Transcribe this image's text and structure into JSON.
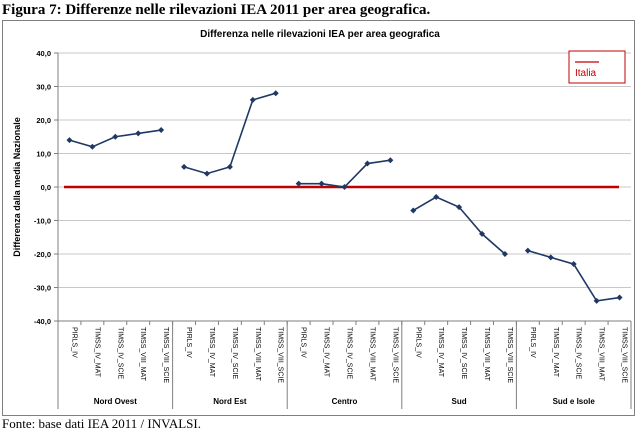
{
  "figure_title": "Figura 7: Differenze nelle rilevazioni IEA 2011 per area geografica.",
  "source_note": "Fonte: base dati IEA 2011 / INVALSI.",
  "colors": {
    "series": "#1f3864",
    "reference": "#c00000",
    "grid": "#c8c8c8",
    "legend_border": "#c00000"
  },
  "chart_data": {
    "type": "line",
    "title": "Differenza nelle rilevazioni IEA per area geografica",
    "ylabel": "Differenza dalla media Nazionale",
    "xlabel": "",
    "ylim": [
      -40,
      40
    ],
    "yticks": [
      -40,
      -30,
      -20,
      -10,
      0,
      10,
      20,
      30,
      40
    ],
    "ytick_labels": [
      "-40,0",
      "-30,0",
      "-20,0",
      "-10,0",
      "0,0",
      "10,0",
      "20,0",
      "30,0",
      "40,0"
    ],
    "grid": true,
    "legend": {
      "entries": [
        "Italia"
      ],
      "placement": "top-right"
    },
    "reference_line": {
      "name": "Italia",
      "value": 0
    },
    "groups": [
      {
        "name": "Nord Ovest",
        "categories": [
          "PIRLS_IV",
          "TIMSS_IV_MAT",
          "TIMSS_IV_SCIE",
          "TIMSS_VIII_MAT",
          "TIMSS_VIII_SCIE"
        ],
        "values": [
          14,
          12,
          15,
          16,
          17
        ]
      },
      {
        "name": "Nord Est",
        "categories": [
          "PIRLS_IV",
          "TIMSS_IV_MAT",
          "TIMSS_IV_SCIE",
          "TIMSS_VIII_MAT",
          "TIMSS_VIII_SCIE"
        ],
        "values": [
          6,
          4,
          6,
          26,
          28
        ]
      },
      {
        "name": "Centro",
        "categories": [
          "PIRLS_IV",
          "TIMSS_IV_MAT",
          "TIMSS_IV_SCIE",
          "TIMSS_VIII_MAT",
          "TIMSS_VIII_SCIE"
        ],
        "values": [
          1,
          1,
          0,
          7,
          8
        ]
      },
      {
        "name": "Sud",
        "categories": [
          "PIRLS_IV",
          "TIMSS_IV_MAT",
          "TIMSS_IV_SCIE",
          "TIMSS_VIII_MAT",
          "TIMSS_VIII_SCIE"
        ],
        "values": [
          -7,
          -3,
          -6,
          -14,
          -20
        ]
      },
      {
        "name": "Sud e Isole",
        "categories": [
          "PIRLS_IV",
          "TIMSS_IV_MAT",
          "TIMSS_IV_SCIE",
          "TIMSS_VIII_MAT",
          "TIMSS_VIII_SCIE"
        ],
        "values": [
          -19,
          -21,
          -23,
          -34,
          -33
        ]
      }
    ]
  }
}
